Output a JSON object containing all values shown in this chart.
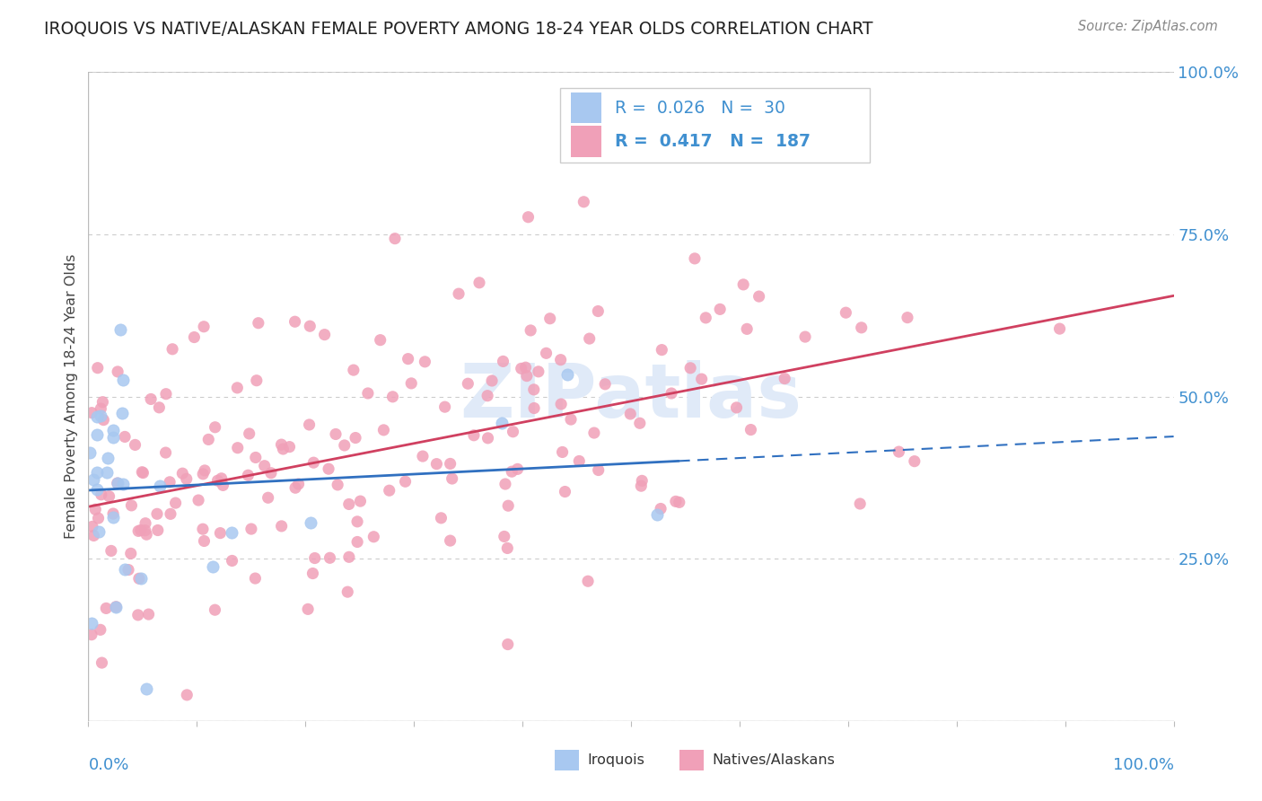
{
  "title": "IROQUOIS VS NATIVE/ALASKAN FEMALE POVERTY AMONG 18-24 YEAR OLDS CORRELATION CHART",
  "source": "Source: ZipAtlas.com",
  "ylabel": "Female Poverty Among 18-24 Year Olds",
  "iroquois_R": 0.026,
  "iroquois_N": 30,
  "native_R": 0.417,
  "native_N": 187,
  "iroquois_color": "#a8c8f0",
  "native_color": "#f0a0b8",
  "iroquois_line_color": "#3070c0",
  "native_line_color": "#d04060",
  "background_color": "#ffffff",
  "grid_color": "#cccccc",
  "border_color": "#bbbbbb",
  "right_tick_color": "#4090d0",
  "title_color": "#222222",
  "source_color": "#888888",
  "watermark_color": "#e0eaf8",
  "legend_edge_color": "#cccccc",
  "ytick_vals": [
    0.25,
    0.5,
    0.75,
    1.0
  ],
  "ytick_labels": [
    "25.0%",
    "50.0%",
    "75.0%",
    "100.0%"
  ]
}
